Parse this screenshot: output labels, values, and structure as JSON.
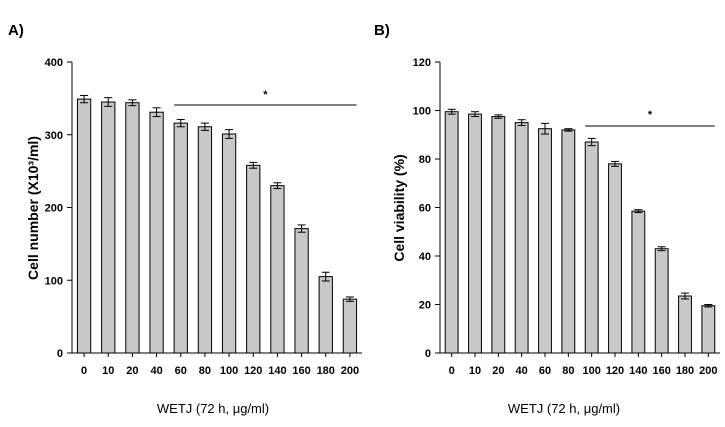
{
  "chart_data": [
    {
      "type": "bar",
      "panel_label": "A)",
      "categories": [
        "0",
        "10",
        "20",
        "40",
        "60",
        "80",
        "100",
        "120",
        "140",
        "160",
        "180",
        "200"
      ],
      "values": [
        349,
        345,
        344,
        331,
        316,
        311,
        301,
        258,
        230,
        171,
        105,
        74
      ],
      "errors": [
        5,
        6,
        4,
        6,
        5,
        5,
        6,
        4,
        4,
        5,
        6,
        3
      ],
      "xlabel": "WETJ (72 h, μg/ml)",
      "ylabel": "Cell number (X10³/ml)",
      "ylim": [
        0,
        400
      ],
      "yticks": [
        "0",
        "100",
        "200",
        "300",
        "400"
      ],
      "significance": {
        "symbol": "*",
        "from": "60",
        "to": "200"
      },
      "bar_color": "#c8c8c8",
      "grid": false
    },
    {
      "type": "bar",
      "panel_label": "B)",
      "categories": [
        "0",
        "10",
        "20",
        "40",
        "60",
        "80",
        "100",
        "120",
        "140",
        "160",
        "180",
        "200"
      ],
      "values": [
        99.5,
        98.5,
        97.5,
        95,
        92.5,
        92,
        87,
        78,
        58.5,
        43,
        23.5,
        19.5
      ],
      "errors": [
        1,
        1,
        0.7,
        1.2,
        2.2,
        0.5,
        1.5,
        1,
        0.6,
        0.8,
        1.2,
        0.5
      ],
      "xlabel": "WETJ (72 h, μg/ml)",
      "ylabel": "Cell viability (%)",
      "ylim": [
        0,
        120
      ],
      "yticks": [
        "0",
        "20",
        "40",
        "60",
        "80",
        "100",
        "120"
      ],
      "significance": {
        "symbol": "*",
        "from": "100",
        "to": "200"
      },
      "bar_color": "#c8c8c8",
      "grid": false
    }
  ]
}
